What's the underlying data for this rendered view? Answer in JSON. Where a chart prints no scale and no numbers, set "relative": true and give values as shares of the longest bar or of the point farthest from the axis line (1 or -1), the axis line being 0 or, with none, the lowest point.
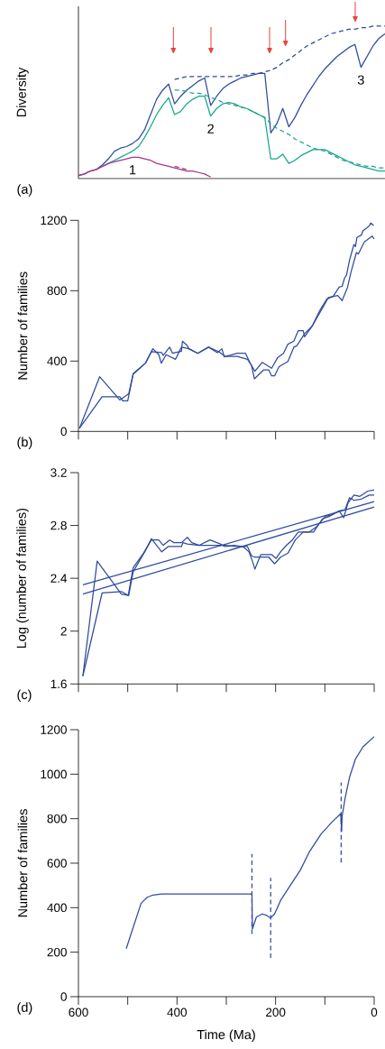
{
  "chart_data": [
    {
      "type": "line",
      "relative": true,
      "ylabel": "Diversity",
      "annotations": [
        "(a)"
      ],
      "categories": [
        null,
        null,
        null,
        null,
        null,
        null,
        null,
        null,
        null,
        null,
        null,
        null,
        null,
        null,
        null,
        null,
        null,
        null,
        null,
        null,
        null,
        null,
        null,
        null,
        null,
        null,
        null,
        null,
        null,
        null,
        null,
        null,
        null,
        null,
        null,
        null,
        null,
        null,
        null,
        null,
        null,
        null,
        null,
        null,
        null,
        null,
        null,
        null,
        null,
        null,
        null,
        null
      ],
      "series": [
        {
          "name": "3",
          "color": "#2f4b9f",
          "line_style": "solid",
          "values": [
            0.02,
            0.03,
            0.05,
            0.06,
            0.09,
            0.13,
            0.18,
            0.2,
            0.21,
            0.23,
            0.26,
            0.32,
            0.42,
            0.52,
            0.58,
            0.62,
            0.49,
            0.54,
            0.58,
            0.61,
            0.64,
            0.66,
            0.48,
            0.54,
            0.59,
            0.62,
            0.64,
            0.66,
            0.67,
            0.68,
            0.69,
            0.69,
            0.3,
            0.36,
            0.46,
            0.34,
            0.4,
            0.48,
            0.55,
            0.61,
            0.67,
            0.72,
            0.76,
            0.8,
            0.83,
            0.86,
            0.88,
            0.73,
            0.8,
            0.87,
            0.92,
            0.95
          ]
        },
        {
          "color": "#2f4b9f",
          "line_style": "dashed",
          "values": [
            null,
            null,
            null,
            null,
            null,
            null,
            null,
            null,
            null,
            null,
            null,
            null,
            null,
            null,
            null,
            null,
            0.65,
            0.66,
            0.67,
            0.67,
            0.67,
            0.67,
            0.67,
            0.67,
            0.67,
            0.67,
            0.67,
            0.68,
            0.68,
            0.69,
            0.69,
            0.7,
            0.71,
            0.73,
            0.76,
            0.78,
            0.81,
            0.84,
            0.87,
            0.89,
            0.91,
            0.93,
            0.95,
            0.96,
            0.97,
            0.98,
            0.98,
            0.99,
            0.99,
            1.0,
            1.0,
            1.0
          ]
        },
        {
          "name": "2",
          "color": "#16a68c",
          "line_style": "solid",
          "values": [
            null,
            null,
            null,
            null,
            0.08,
            0.1,
            0.12,
            0.14,
            0.16,
            0.18,
            0.21,
            0.27,
            0.34,
            0.42,
            0.48,
            0.53,
            0.42,
            0.44,
            0.49,
            0.52,
            0.54,
            0.54,
            0.41,
            0.46,
            0.49,
            0.5,
            0.49,
            0.47,
            0.46,
            0.44,
            0.42,
            0.4,
            0.13,
            0.13,
            0.16,
            0.1,
            0.12,
            0.15,
            0.17,
            0.19,
            0.19,
            0.19,
            0.17,
            0.15,
            0.13,
            0.11,
            0.09,
            0.08,
            0.07,
            0.06,
            0.05,
            0.05
          ]
        },
        {
          "color": "#16a68c",
          "line_style": "dashed",
          "values": [
            null,
            null,
            null,
            null,
            null,
            null,
            null,
            null,
            null,
            null,
            null,
            null,
            null,
            null,
            null,
            null,
            0.58,
            0.58,
            0.57,
            0.56,
            0.56,
            0.55,
            0.53,
            0.52,
            0.5,
            0.49,
            0.48,
            0.47,
            0.46,
            0.44,
            0.42,
            0.4,
            0.36,
            0.33,
            0.31,
            0.29,
            0.26,
            0.24,
            0.22,
            0.2,
            0.19,
            0.18,
            0.16,
            0.14,
            0.12,
            0.11,
            0.1,
            0.09,
            0.08,
            0.08,
            0.07,
            0.07
          ]
        },
        {
          "name": "1",
          "color": "#a2368e",
          "line_style": "solid",
          "values": [
            0.02,
            0.03,
            0.05,
            0.06,
            0.08,
            0.1,
            0.11,
            0.12,
            0.13,
            0.14,
            0.14,
            0.13,
            0.12,
            0.1,
            0.09,
            0.08,
            0.07,
            0.06,
            0.05,
            0.05,
            0.04,
            0.03,
            0.01,
            null,
            null,
            null,
            null,
            null,
            null,
            null,
            null,
            null,
            null,
            null,
            null,
            null,
            null,
            null,
            null,
            null,
            null,
            null,
            null,
            null,
            null,
            null,
            null,
            null,
            null,
            null,
            null,
            null
          ]
        },
        {
          "color": "#a2368e",
          "line_style": "dashed",
          "values": [
            null,
            null,
            null,
            null,
            null,
            null,
            null,
            null,
            null,
            null,
            null,
            null,
            null,
            null,
            null,
            null,
            0.08,
            0.07,
            0.06,
            null,
            null,
            null,
            null,
            null,
            null,
            null,
            null,
            null,
            null,
            null,
            null,
            null,
            null,
            null,
            null,
            null,
            null,
            null,
            null,
            null,
            null,
            null,
            null,
            null,
            null,
            null,
            null,
            null,
            null,
            null,
            null,
            null
          ]
        }
      ]
    },
    {
      "type": "line",
      "ylabel": "Number of families",
      "annotations": [
        "(b)"
      ],
      "xlim": [
        600,
        0
      ],
      "xticks": [
        600,
        500,
        400,
        300,
        200,
        100,
        0
      ],
      "ylim": [
        0,
        1200
      ],
      "yticks": [
        0,
        400,
        800,
        1200
      ],
      "tick_labels": "y",
      "series": [
        {
          "color": "#2f4b9f",
          "x": [
            598,
            557,
            516,
            498,
            489,
            464,
            452,
            431,
            428,
            415,
            409,
            391,
            389,
            379,
            376,
            358,
            336,
            318,
            309,
            304,
            278,
            261,
            251,
            242,
            227,
            208,
            196,
            184,
            175,
            163,
            154,
            144,
            141,
            126,
            111,
            96,
            83,
            71,
            65,
            60,
            56,
            50,
            41,
            38,
            35,
            26,
            23,
            10,
            7,
            1
          ],
          "values": [
            17,
            311,
            179,
            214,
            328,
            388,
            453,
            448,
            432,
            479,
            444,
            456,
            513,
            487,
            470,
            444,
            479,
            448,
            470,
            424,
            444,
            444,
            385,
            342,
            393,
            359,
            419,
            444,
            496,
            513,
            573,
            573,
            538,
            598,
            684,
            752,
            769,
            820,
            826,
            872,
            889,
            974,
            1063,
            1051,
            1103,
            1116,
            1140,
            1168,
            1185,
            1171
          ]
        },
        {
          "color": "#2f4b9f",
          "x": [
            598,
            552,
            516,
            510,
            500,
            489,
            464,
            449,
            437,
            432,
            422,
            403,
            391,
            376,
            358,
            336,
            315,
            303,
            278,
            257,
            249,
            245,
            243,
            224,
            214,
            208,
            202,
            193,
            175,
            163,
            157,
            141,
            126,
            105,
            93,
            74,
            65,
            54,
            47,
            36,
            32,
            20,
            4,
            0
          ],
          "values": [
            17,
            197,
            197,
            174,
            174,
            325,
            388,
            470,
            436,
            388,
            436,
            410,
            479,
            470,
            444,
            479,
            453,
            427,
            427,
            410,
            376,
            325,
            299,
            350,
            350,
            316,
            316,
            368,
            398,
            479,
            487,
            556,
            598,
            701,
            761,
            773,
            744,
            820,
            906,
            1017,
            1009,
            1077,
            1111,
            1094
          ]
        }
      ]
    },
    {
      "type": "line",
      "ylabel": "Log (number of families)",
      "annotations": [
        "(c)"
      ],
      "xlim": [
        600,
        0
      ],
      "xticks": [
        600,
        500,
        400,
        300,
        200,
        100,
        0
      ],
      "ylim": [
        1.6,
        3.2
      ],
      "yticks": [
        1.6,
        2,
        2.4,
        2.8,
        3.2
      ],
      "tick_labels": "y",
      "series": [
        {
          "color": "#2f4b9f",
          "x": [
            591,
            562,
            513,
            499,
            489,
            468,
            452,
            437,
            428,
            415,
            406,
            391,
            379,
            370,
            355,
            333,
            312,
            303,
            284,
            266,
            254,
            248,
            242,
            230,
            208,
            199,
            190,
            178,
            166,
            154,
            132,
            117,
            99,
            87,
            71,
            62,
            53,
            41,
            29,
            13,
            0
          ],
          "values": [
            1.66,
            2.53,
            2.28,
            2.27,
            2.48,
            2.59,
            2.69,
            2.69,
            2.65,
            2.69,
            2.67,
            2.67,
            2.71,
            2.67,
            2.65,
            2.69,
            2.66,
            2.64,
            2.65,
            2.64,
            2.6,
            2.54,
            2.47,
            2.58,
            2.58,
            2.55,
            2.6,
            2.65,
            2.69,
            2.75,
            2.75,
            2.79,
            2.87,
            2.88,
            2.91,
            2.86,
            2.97,
            3.03,
            3.02,
            3.06,
            3.07
          ]
        },
        {
          "color": "#2f4b9f",
          "x": [
            591,
            552,
            513,
            498,
            489,
            464,
            452,
            431,
            418,
            391,
            388,
            379,
            355,
            303,
            278,
            257,
            249,
            242,
            214,
            202,
            190,
            175,
            166,
            160,
            144,
            123,
            105,
            90,
            71,
            59,
            50,
            41,
            26,
            10,
            0
          ],
          "values": [
            1.66,
            2.29,
            2.3,
            2.27,
            2.45,
            2.61,
            2.7,
            2.6,
            2.64,
            2.64,
            2.67,
            2.66,
            2.65,
            2.65,
            2.64,
            2.64,
            2.57,
            2.56,
            2.56,
            2.51,
            2.56,
            2.59,
            2.65,
            2.69,
            2.75,
            2.75,
            2.85,
            2.87,
            2.91,
            2.92,
            3.01,
            2.99,
            3.0,
            3.03,
            3.03
          ]
        },
        {
          "color": "#2f4b9f",
          "x": [
            591,
            0
          ],
          "values": [
            2.35,
            2.98
          ]
        },
        {
          "color": "#2f4b9f",
          "x": [
            591,
            0
          ],
          "values": [
            2.28,
            2.94
          ]
        }
      ]
    },
    {
      "type": "line",
      "xlabel": "Time (Ma)",
      "ylabel": "Number of families",
      "annotations": [
        "(d)"
      ],
      "xlim": [
        600,
        0
      ],
      "xticks": [
        600,
        {
          "value": 500,
          "label": null
        },
        400,
        {
          "value": 300,
          "label": null
        },
        200,
        {
          "value": 100,
          "label": null
        },
        0
      ],
      "ylim": [
        0,
        1200
      ],
      "yticks": [
        0,
        200,
        400,
        600,
        800,
        1000,
        1200
      ],
      "ref_lines": [
        {
          "axis": "x",
          "value": 248,
          "color": "#2f4b9f",
          "line_style": "dashed"
        },
        {
          "axis": "x",
          "value": 210,
          "color": "#2f4b9f",
          "line_style": "dashed"
        },
        {
          "axis": "x",
          "value": 67,
          "color": "#2f4b9f",
          "line_style": "dashed"
        }
      ],
      "series": [
        {
          "color": "#2f4b9f",
          "x": [
            503,
            473,
            461,
            449,
            431,
            248,
            247,
            239,
            227,
            218,
            210,
            202,
            190,
            166,
            150,
            132,
            108,
            86,
            68,
            66,
            65,
            59,
            50,
            38,
            23,
            0
          ],
          "values": [
            216,
            419,
            446,
            457,
            462,
            462,
            304,
            358,
            372,
            365,
            354,
            372,
            432,
            514,
            568,
            649,
            730,
            784,
            822,
            743,
            811,
            892,
            986,
            1068,
            1122,
            1169
          ]
        }
      ]
    }
  ]
}
